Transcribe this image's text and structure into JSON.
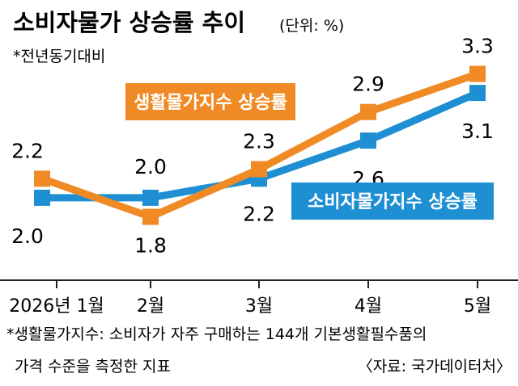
{
  "chart_data": {
    "type": "line",
    "title": "소비자물가 상승률 추이",
    "unit": "(단위: %)",
    "subtitle": "*전년동기대비",
    "categories": [
      "2026년 1월",
      "2월",
      "3월",
      "4월",
      "5월"
    ],
    "series": [
      {
        "name": "생활물가지수 상승률",
        "color": "#f08a24",
        "values": [
          2.2,
          1.8,
          2.3,
          2.9,
          3.3
        ],
        "labels": [
          "2.2",
          "1.8",
          "2.3",
          "2.9",
          "3.3"
        ]
      },
      {
        "name": "소비자물가지수 상승률",
        "color": "#1e8fd3",
        "values": [
          2.0,
          2.0,
          2.2,
          2.6,
          3.1
        ],
        "labels": [
          "2.0",
          "2.0",
          "2.2",
          "2.6",
          "3.1"
        ]
      }
    ],
    "ylim": [
      1.55,
      3.55
    ],
    "grid": false
  },
  "footnote": {
    "line1": "*생활물가지수: 소비자가 자주 구매하는 144개 기본생활필수품의",
    "line2": "가격 수준을 측정한 지표",
    "source": "〈자료: 국가데이터처〉"
  }
}
